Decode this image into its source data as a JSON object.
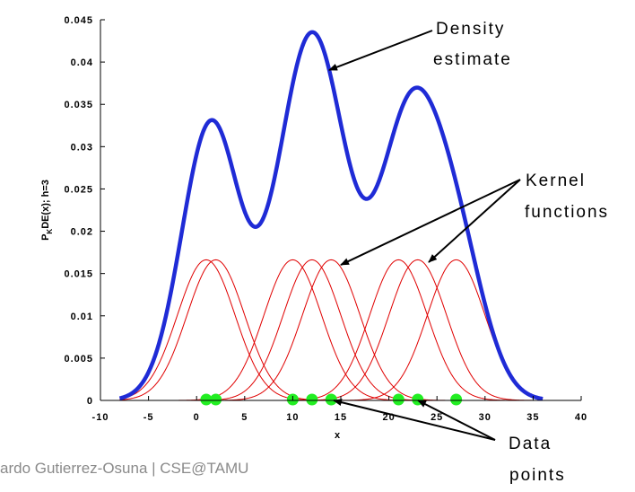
{
  "chart_data": {
    "type": "line",
    "xlabel": "x",
    "ylabel": "P_KDE(x); h=3",
    "xlim": [
      -10,
      40
    ],
    "ylim": [
      0,
      0.045
    ],
    "x_ticks": [
      "-10",
      "-5",
      "0",
      "5",
      "10",
      "15",
      "20",
      "25",
      "30",
      "35",
      "40"
    ],
    "y_ticks": [
      "0",
      "0.005",
      "0.01",
      "0.015",
      "0.02",
      "0.025",
      "0.03",
      "0.035",
      "0.04",
      "0.045"
    ],
    "bandwidth_h": 3,
    "data_points": [
      1,
      2,
      10,
      12,
      14,
      21,
      23,
      27
    ],
    "colors": {
      "density": "#1f2bd6",
      "kernel": "#e00000",
      "points": "#22ee22"
    },
    "annotations": [
      {
        "line1": "Density",
        "line2": "estimate"
      },
      {
        "line1": "Kernel",
        "line2": "functions"
      },
      {
        "line1": "Data",
        "line2": "points"
      }
    ]
  },
  "footer": {
    "text": "ardo Gutierrez-Osuna | CSE@TAMU"
  }
}
